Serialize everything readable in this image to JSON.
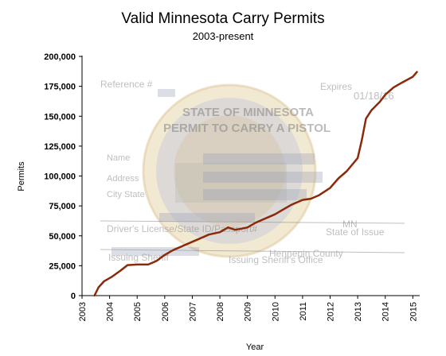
{
  "chart_data": {
    "type": "line",
    "title": "Valid Minnesota Carry Permits",
    "subtitle": "2003-present",
    "xlabel": "Year",
    "ylabel": "Permits",
    "xlim": [
      2003,
      2015.25
    ],
    "ylim": [
      0,
      200000
    ],
    "x_ticks": [
      2003,
      2004,
      2005,
      2006,
      2007,
      2008,
      2009,
      2010,
      2011,
      2012,
      2013,
      2014,
      2015
    ],
    "y_ticks": [
      0,
      25000,
      50000,
      75000,
      100000,
      125000,
      150000,
      175000,
      200000
    ],
    "y_tick_labels": [
      "0",
      "25,000",
      "50,000",
      "75,000",
      "100,000",
      "125,000",
      "150,000",
      "175,000",
      "200,000"
    ],
    "grid": false,
    "line_color": "#8b2a0a",
    "series": [
      {
        "x": [
          2003.45,
          2003.6,
          2003.8,
          2004.1,
          2004.4,
          2004.65,
          2005.0,
          2005.4,
          2005.7,
          2006.0,
          2006.3,
          2006.6,
          2007.0,
          2007.3,
          2007.6,
          2008.0,
          2008.3,
          2008.55,
          2008.8,
          2009.0,
          2009.3,
          2009.6,
          2010.0,
          2010.3,
          2010.6,
          2011.0,
          2011.3,
          2011.6,
          2012.0,
          2012.3,
          2012.6,
          2013.0,
          2013.15,
          2013.3,
          2013.5,
          2013.8,
          2014.0,
          2014.3,
          2014.6,
          2015.0,
          2015.15
        ],
        "y": [
          0,
          7000,
          12000,
          16000,
          21000,
          25500,
          26000,
          26000,
          29000,
          34000,
          38000,
          41000,
          45000,
          48000,
          51000,
          53000,
          57000,
          55000,
          56000,
          57000,
          61000,
          64000,
          68000,
          72000,
          76000,
          80000,
          81000,
          84000,
          90000,
          98000,
          104000,
          115000,
          130000,
          148000,
          155000,
          162000,
          168000,
          174000,
          178000,
          183000,
          187000
        ]
      }
    ]
  },
  "watermark": {
    "reference_label": "Reference #",
    "expires_label": "Expires",
    "expires_value": "01/18/16",
    "heading_line1": "STATE OF MINNESOTA",
    "heading_line2": "PERMIT TO CARRY A PISTOL",
    "name_label": "Name",
    "address_label": "Address",
    "city_state_label": "City State",
    "license_label": "Driver's License/State ID/Passport#",
    "state_value": "MN",
    "state_label": "State of Issue",
    "sheriff_label": "Issuing Sheriff",
    "county_value": "Hennepin County",
    "sheriff_office_label": "Issuing Sheriff's Office"
  }
}
